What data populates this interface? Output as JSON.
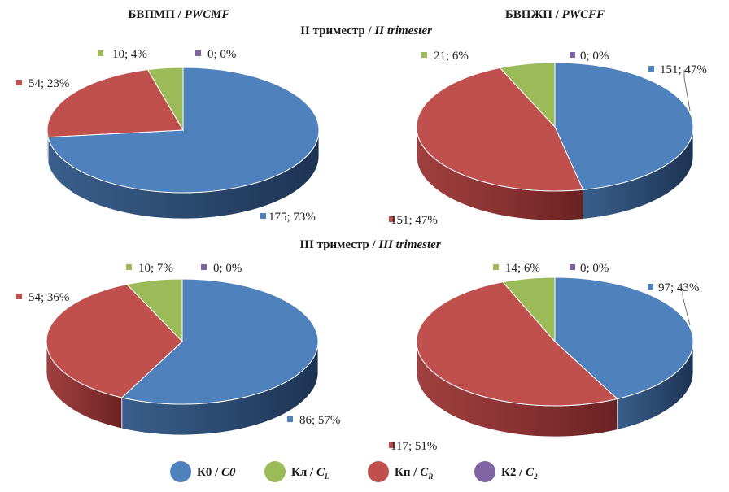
{
  "headers": {
    "left_prefix": "БВПМП / ",
    "left_italic": "PWCMF",
    "right_prefix": "БВПЖП / ",
    "right_italic": "PWCFF",
    "row1_prefix": "II триместр / ",
    "row1_italic": "II trimester",
    "row2_prefix": "III триместр / ",
    "row2_italic": "III trimester"
  },
  "colors": {
    "K0": "#4f81bd",
    "Kl": "#9bbb59",
    "Kp": "#c0504d",
    "K2": "#8064a2"
  },
  "legend": [
    {
      "key": "K0",
      "prefix": "К0 / ",
      "italic": "C0",
      "sub": ""
    },
    {
      "key": "Kl",
      "prefix": "Кл / ",
      "italic": "C",
      "sub": "L"
    },
    {
      "key": "Kp",
      "prefix": "Кп / ",
      "italic": "C",
      "sub": "R"
    },
    {
      "key": "K2",
      "prefix": "К2 / ",
      "italic": "C",
      "sub": "2"
    }
  ],
  "chart_data": [
    {
      "type": "pie",
      "group": "БВПМП / PWCMF",
      "period": "II триместр / II trimester",
      "slices": [
        {
          "key": "K0",
          "value": 175,
          "label": "175; 73%"
        },
        {
          "key": "Kp",
          "value": 54,
          "label": "54; 23%"
        },
        {
          "key": "Kl",
          "value": 10,
          "label": "10; 4%"
        },
        {
          "key": "K2",
          "value": 0,
          "label": "0; 0%"
        }
      ]
    },
    {
      "type": "pie",
      "group": "БВПЖП / PWCFF",
      "period": "II триместр / II trimester",
      "slices": [
        {
          "key": "K0",
          "value": 151,
          "label": "151; 47%"
        },
        {
          "key": "Kp",
          "value": 151,
          "label": "151; 47%"
        },
        {
          "key": "Kl",
          "value": 21,
          "label": "21; 6%"
        },
        {
          "key": "K2",
          "value": 0,
          "label": "0; 0%"
        }
      ]
    },
    {
      "type": "pie",
      "group": "БВПМП / PWCMF",
      "period": "III триместр / III trimester",
      "slices": [
        {
          "key": "K0",
          "value": 86,
          "label": "86; 57%"
        },
        {
          "key": "Kp",
          "value": 54,
          "label": "54; 36%"
        },
        {
          "key": "Kl",
          "value": 10,
          "label": "10; 7%"
        },
        {
          "key": "K2",
          "value": 0,
          "label": "0; 0%"
        }
      ]
    },
    {
      "type": "pie",
      "group": "БВПЖП / PWCFF",
      "period": "III триместр / III trimester",
      "slices": [
        {
          "key": "K0",
          "value": 97,
          "label": "97; 43%"
        },
        {
          "key": "Kp",
          "value": 117,
          "label": "117; 51%"
        },
        {
          "key": "Kl",
          "value": 14,
          "label": "14; 6%"
        },
        {
          "key": "K2",
          "value": 0,
          "label": "0; 0%"
        }
      ]
    }
  ]
}
